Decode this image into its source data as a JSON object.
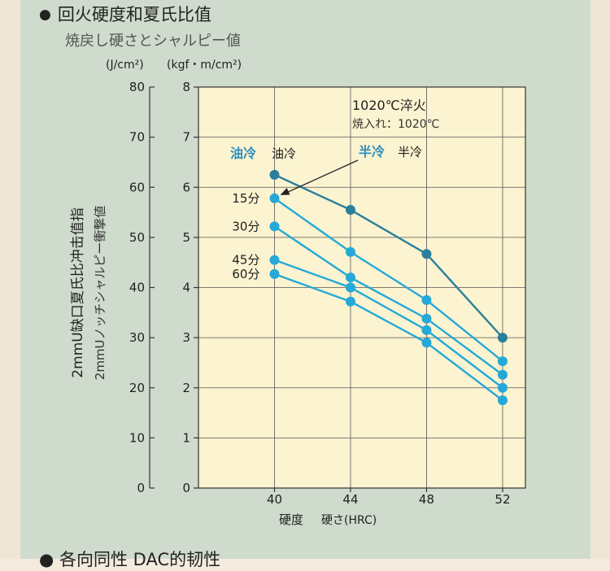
{
  "heading": {
    "bullet": "●",
    "text": "回火硬度和夏氏比值"
  },
  "subheading": "焼戻し硬さとシャルピー値",
  "next_heading": "●  各向同性 DAC的韧性",
  "colors": {
    "plot_bg": "#fcf3d0",
    "oil_cooling": "#2a7f9c",
    "half_cooling": "#24a9d8",
    "grid": "#555555",
    "legend_text": "#2a8fbf"
  },
  "chart_data": {
    "type": "line",
    "title": "",
    "annotation": {
      "line1": "1020℃淬火",
      "line2": "焼入れ：1020℃"
    },
    "xlabel": {
      "cn": "硬度",
      "jp": "硬さ(HRC)"
    },
    "ylabel_left": {
      "cn": "2mmU缺口夏氏比冲击值指",
      "jp": "2mmUノッチシャルピー衝撃値"
    },
    "units_left": "(J/cm²)",
    "units_right": "(kgf・m/cm²)",
    "x": [
      40,
      44,
      48,
      52
    ],
    "xlim": [
      36,
      53.2
    ],
    "x_ticks": [
      "40",
      "44",
      "48",
      "52"
    ],
    "ylim": [
      0,
      8
    ],
    "y_ticks_kgf": [
      "0",
      "1",
      "2",
      "3",
      "4",
      "5",
      "6",
      "7",
      "8"
    ],
    "y_ticks_j": [
      "0",
      "10",
      "20",
      "30",
      "40",
      "50",
      "60",
      "70",
      "80"
    ],
    "grid": true,
    "legend": {
      "oil": {
        "cn": "油冷",
        "jp": "油冷"
      },
      "half": {
        "cn": "半冷",
        "jp": "半冷"
      }
    },
    "series": [
      {
        "name": "油冷",
        "group": "oil",
        "values": [
          6.25,
          5.55,
          4.67,
          3.0
        ]
      },
      {
        "name": "15分",
        "group": "half",
        "values": [
          5.78,
          4.71,
          3.75,
          2.53
        ]
      },
      {
        "name": "30分",
        "group": "half",
        "values": [
          5.22,
          4.2,
          3.38,
          2.26
        ]
      },
      {
        "name": "45分",
        "group": "half",
        "values": [
          4.55,
          4.0,
          3.15,
          2.0
        ]
      },
      {
        "name": "60分",
        "group": "half",
        "values": [
          4.27,
          3.72,
          2.9,
          1.75
        ]
      }
    ]
  }
}
